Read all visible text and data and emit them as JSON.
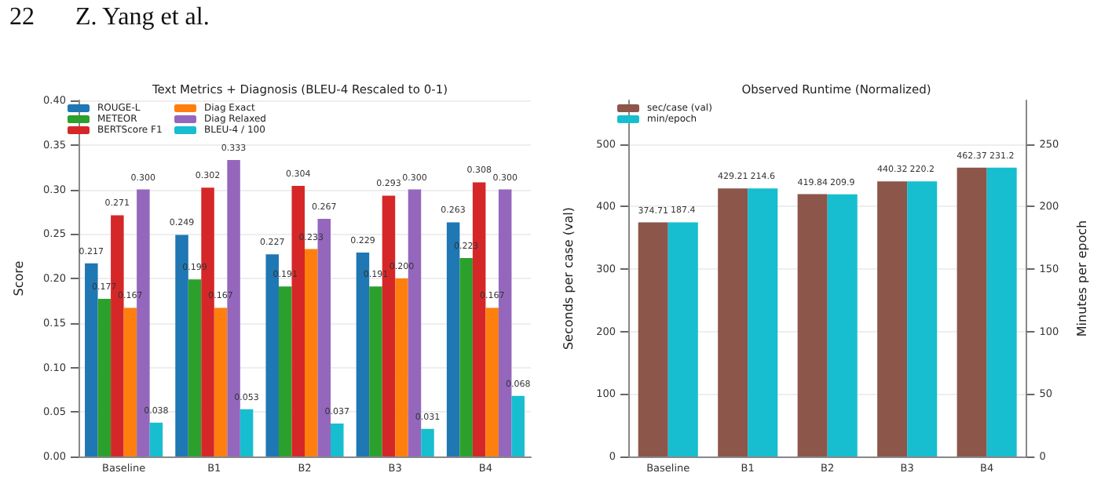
{
  "chart_data": [
    {
      "type": "bar",
      "title": "Text Metrics + Diagnosis (BLEU-4 Rescaled to 0-1)",
      "ylabel": "Score",
      "annotations": [
        "22",
        "Z. Yang et al."
      ],
      "categories": [
        "Baseline",
        "B1",
        "B2",
        "B3",
        "B4"
      ],
      "series": [
        {
          "name": "ROUGE-L",
          "color": "#1f77b4",
          "values": [
            0.217,
            0.249,
            0.227,
            0.229,
            0.263
          ],
          "value_labels": [
            "0.217",
            "0.249",
            "0.227",
            "0.229",
            "0.263"
          ]
        },
        {
          "name": "METEOR",
          "color": "#2ca02c",
          "values": [
            0.177,
            0.199,
            0.191,
            0.191,
            0.223
          ],
          "value_labels": [
            "0.177",
            "0.199",
            "0.191",
            "0.191",
            "0.223"
          ]
        },
        {
          "name": "BERTScore F1",
          "color": "#d62728",
          "values": [
            0.271,
            0.302,
            0.304,
            0.293,
            0.308
          ],
          "value_labels": [
            "0.271",
            "0.302",
            "0.304",
            "0.293",
            "0.308"
          ]
        },
        {
          "name": "Diag Exact",
          "color": "#ff7f0e",
          "values": [
            0.167,
            0.167,
            0.233,
            0.2,
            0.167
          ],
          "value_labels": [
            "0.167",
            "0.167",
            "0.233",
            "0.200",
            "0.167"
          ]
        },
        {
          "name": "Diag Relaxed",
          "color": "#9467bd",
          "values": [
            0.3,
            0.333,
            0.267,
            0.3,
            0.3
          ],
          "value_labels": [
            "0.300",
            "0.333",
            "0.267",
            "0.300",
            "0.300"
          ]
        },
        {
          "name": "BLEU-4 / 100",
          "color": "#17becf",
          "values": [
            0.038,
            0.053,
            0.037,
            0.031,
            0.068
          ],
          "value_labels": [
            "0.038",
            "0.053",
            "0.037",
            "0.031",
            "0.068"
          ]
        }
      ],
      "ylim": [
        0,
        0.4
      ],
      "yticks": [
        {
          "value": 0,
          "label": "0.00"
        },
        {
          "value": 0.05,
          "label": "0.05"
        },
        {
          "value": 0.1,
          "label": "0.10"
        },
        {
          "value": 0.15,
          "label": "0.15"
        },
        {
          "value": 0.2,
          "label": "0.20"
        },
        {
          "value": 0.25,
          "label": "0.25"
        },
        {
          "value": 0.3,
          "label": "0.30"
        },
        {
          "value": 0.35,
          "label": "0.35"
        },
        {
          "value": 0.4,
          "label": "0.40"
        }
      ],
      "grid": "y",
      "legend": "top left"
    },
    {
      "type": "bar",
      "title": "Observed Runtime (Normalized)",
      "ylabel": "Seconds per case (val)",
      "y2label": "Minutes per epoch",
      "categories": [
        "Baseline",
        "B1",
        "B2",
        "B3",
        "B4"
      ],
      "series": [
        {
          "name": "sec/case (val)",
          "color": "#8c564b",
          "values": [
            374.71,
            429.21,
            419.84,
            440.32,
            462.37
          ]
        },
        {
          "name": "min/epoch",
          "color": "#17becf",
          "axis": "y2",
          "values": [
            187.4,
            214.6,
            209.9,
            220.2,
            231.2
          ]
        }
      ],
      "ylim": [
        0,
        570
      ],
      "yticks": [
        0,
        100,
        200,
        300,
        400,
        500
      ],
      "y2lim": [
        0,
        285
      ],
      "y2ticks": [
        0,
        50,
        100,
        150,
        200,
        250
      ],
      "data_labels": true,
      "grid": "y",
      "legend": "top left"
    }
  ]
}
